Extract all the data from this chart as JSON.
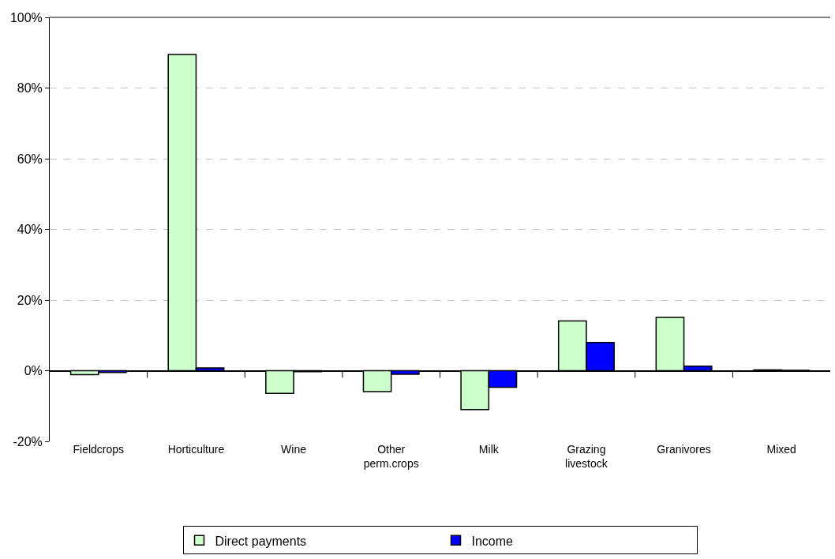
{
  "chart_data": {
    "type": "bar",
    "categories": [
      "Fieldcrops",
      "Horticulture",
      "Wine",
      "Other perm.crops",
      "Milk",
      "Grazing livestock",
      "Granivores",
      "Mixed"
    ],
    "series": [
      {
        "name": "Direct payments",
        "color": "#ccffcc",
        "values": [
          -1.1,
          89.5,
          -6.4,
          -5.9,
          -11,
          14.1,
          15.1,
          0.2
        ]
      },
      {
        "name": "Income",
        "color": "#0000ff",
        "values": [
          -0.5,
          0.8,
          -0.3,
          -1.0,
          -4.7,
          8.0,
          1.3,
          0.1
        ]
      }
    ],
    "ylim": [
      -20,
      100
    ],
    "yticks": [
      {
        "value": -20,
        "label": "-20%"
      },
      {
        "value": 0,
        "label": "0%"
      },
      {
        "value": 20,
        "label": "20%"
      },
      {
        "value": 40,
        "label": "40%"
      },
      {
        "value": 60,
        "label": "60%"
      },
      {
        "value": 80,
        "label": "80%"
      },
      {
        "value": 100,
        "label": "100%"
      }
    ],
    "grid": "y",
    "legend": "bottom"
  }
}
